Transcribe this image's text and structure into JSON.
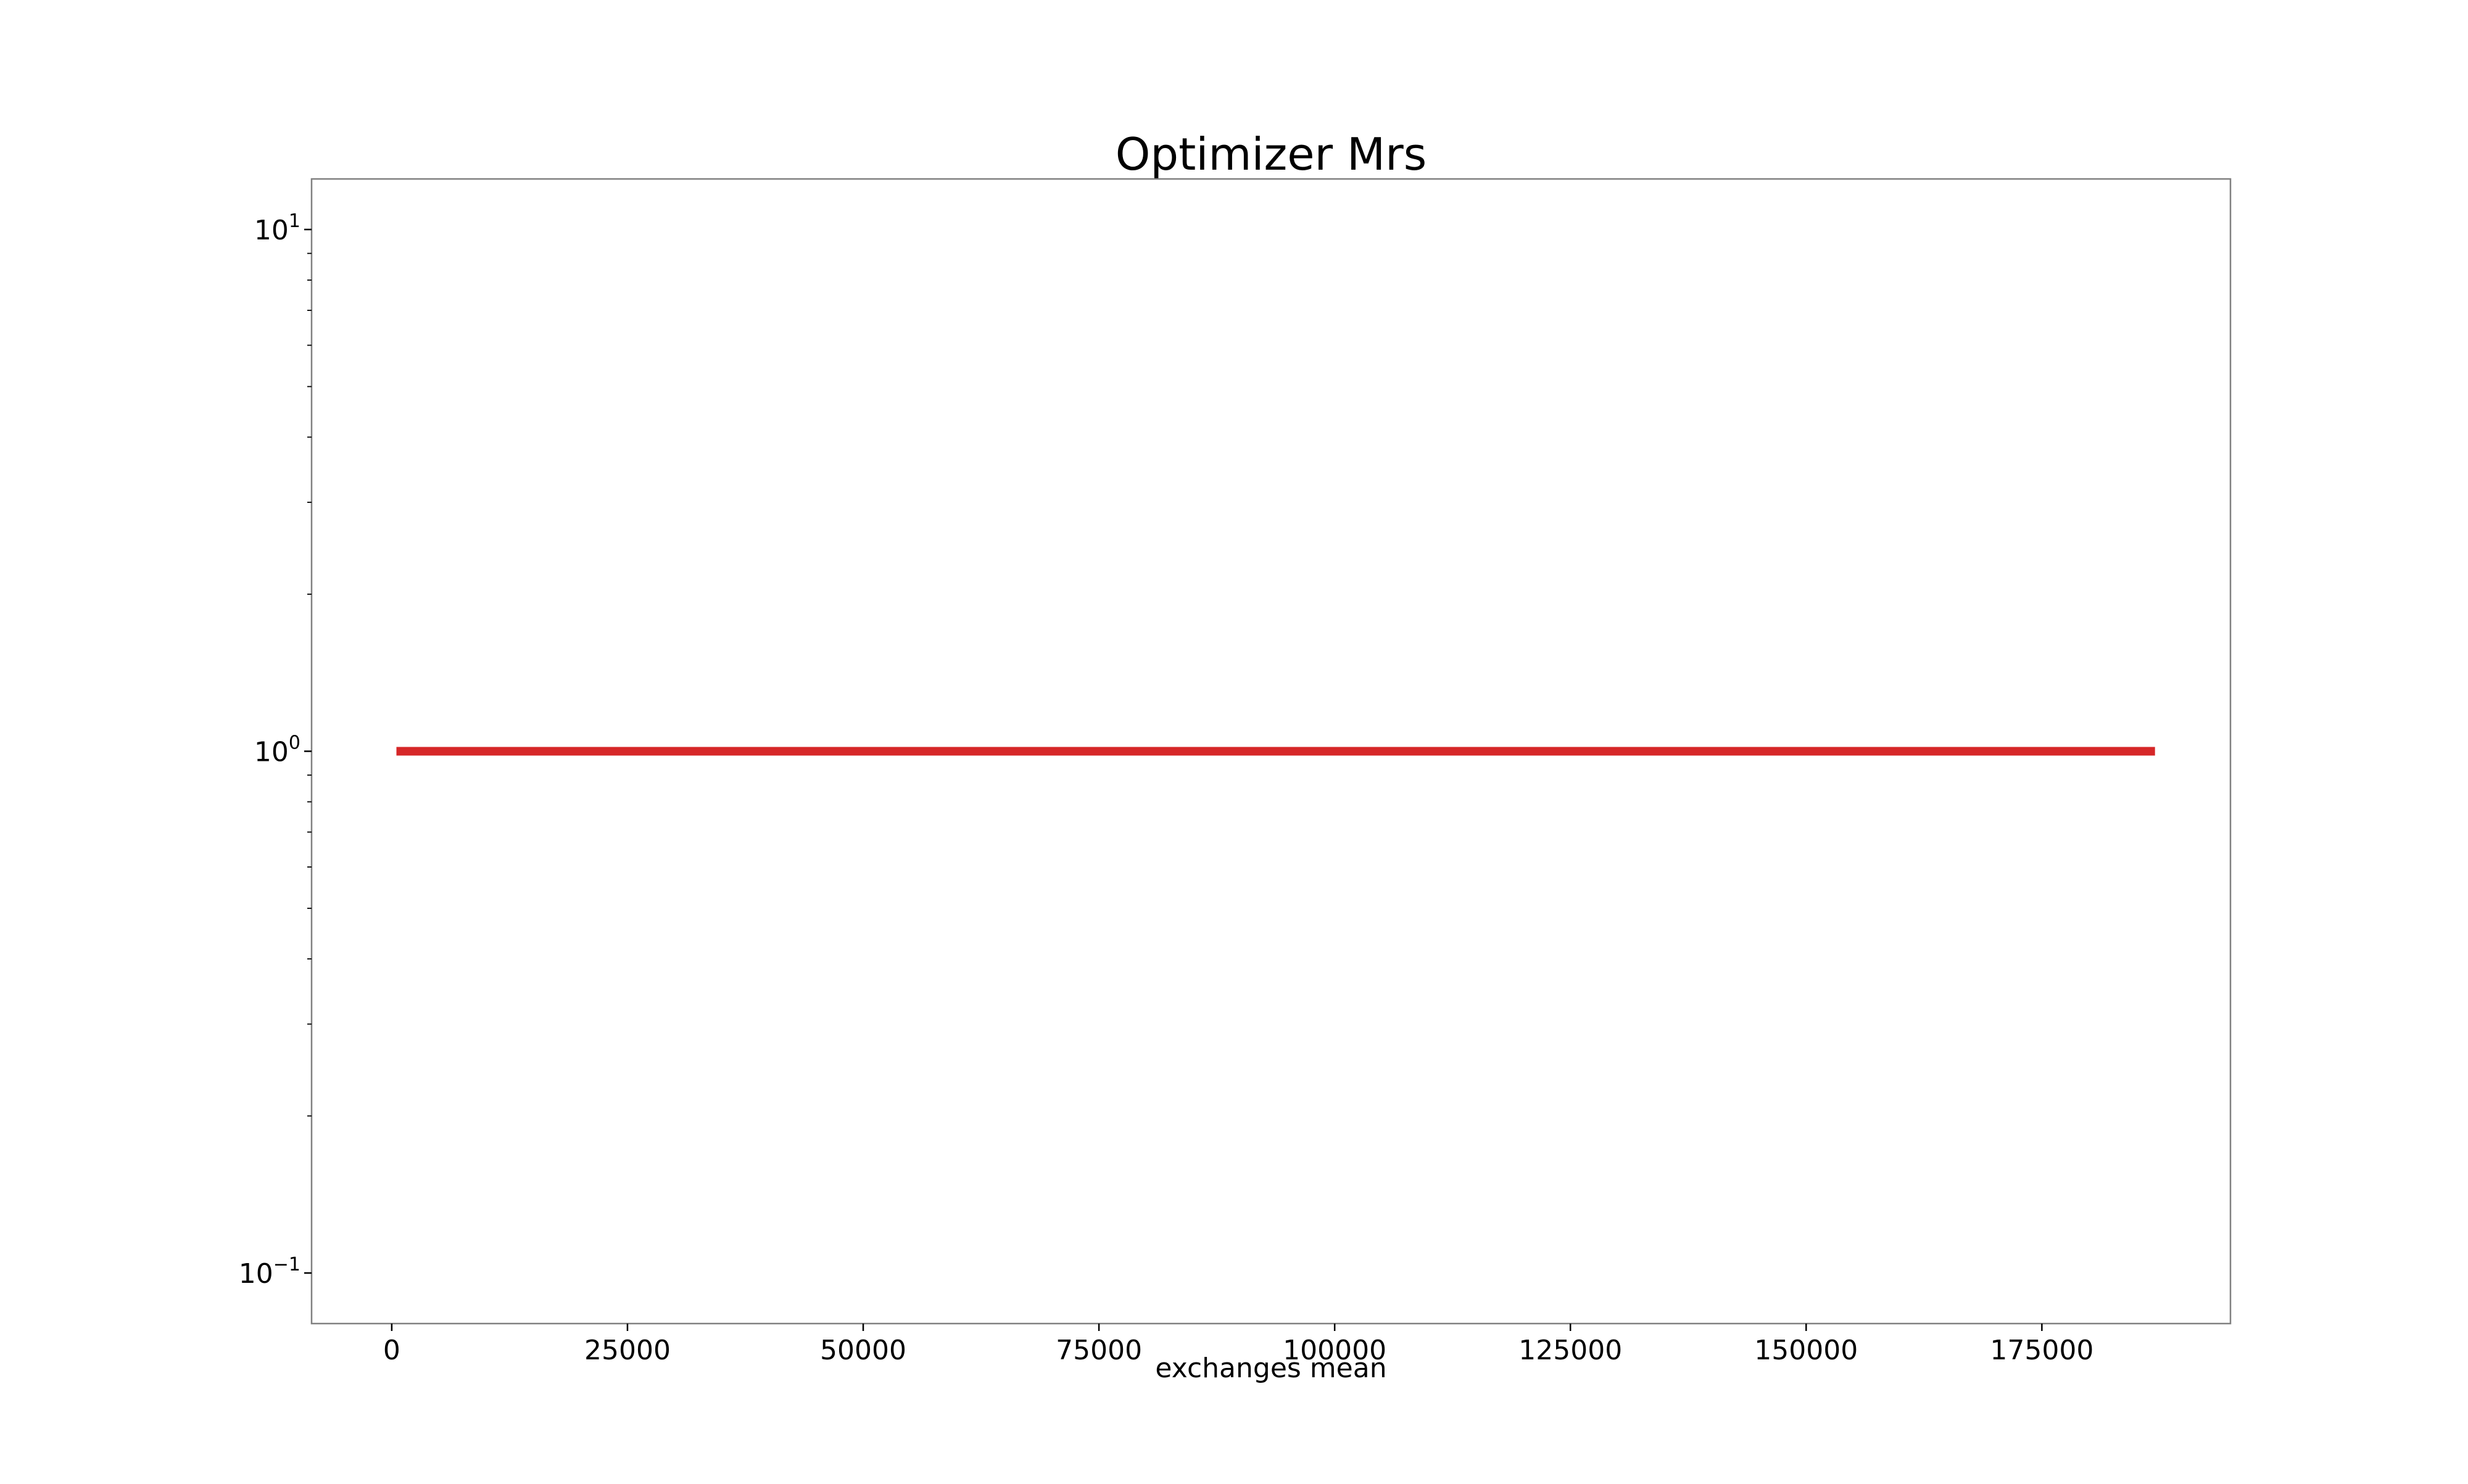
{
  "chart_data": {
    "type": "line",
    "title": "Optimizer Mrs",
    "xlabel": "exchanges mean",
    "ylabel": "",
    "xlim": [
      -8500,
      195000
    ],
    "ylim": [
      0.08,
      12.5
    ],
    "yscale": "log",
    "grid": false,
    "legend": "none",
    "x_ticks": [
      0,
      25000,
      50000,
      75000,
      100000,
      125000,
      150000,
      175000
    ],
    "x_tick_labels": [
      "0",
      "25000",
      "50000",
      "75000",
      "100000",
      "125000",
      "150000",
      "175000"
    ],
    "y_ticks": [
      {
        "value": 10,
        "base": "10",
        "exponent": "1"
      },
      {
        "value": 1,
        "base": "10",
        "exponent": "0"
      },
      {
        "value": 0.1,
        "base": "10",
        "exponent": "−1"
      }
    ],
    "y_minor_ticks": [
      0.2,
      0.3,
      0.4,
      0.5,
      0.6,
      0.7,
      0.8,
      0.9,
      2,
      3,
      4,
      5,
      6,
      7,
      8,
      9
    ],
    "series": [
      {
        "color": "#d62728",
        "x": [
          500,
          187000
        ],
        "y": [
          1,
          1
        ]
      }
    ]
  }
}
